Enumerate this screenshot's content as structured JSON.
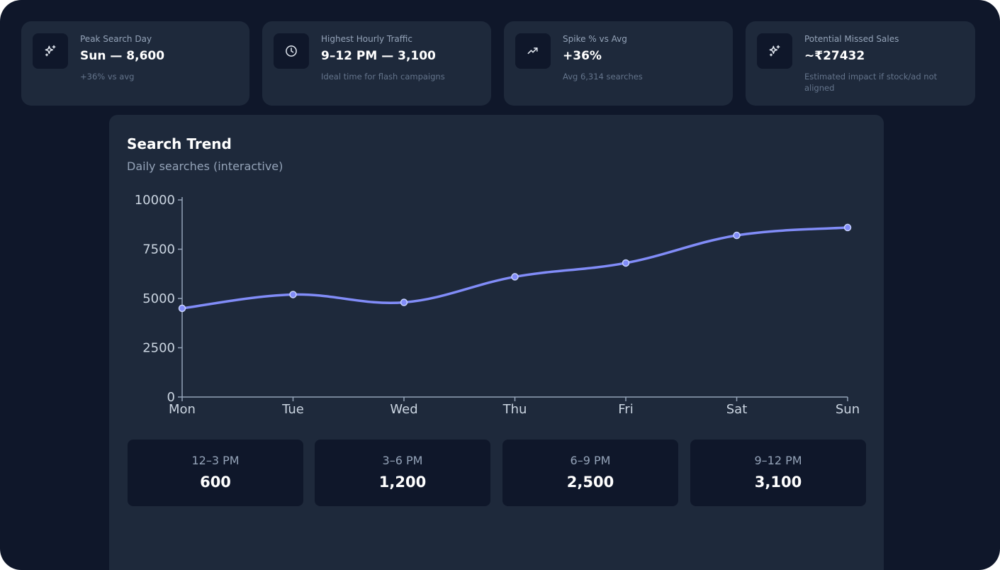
{
  "kpis": [
    {
      "icon": "sparkles-icon",
      "label": "Peak Search Day",
      "value": "Sun — 8,600",
      "sub": "+36% vs avg"
    },
    {
      "icon": "clock-icon",
      "label": "Highest Hourly Traffic",
      "value": "9–12 PM — 3,100",
      "sub": "Ideal time for flash campaigns"
    },
    {
      "icon": "trending-up-icon",
      "label": "Spike % vs Avg",
      "value": "+36%",
      "sub": "Avg 6,314 searches"
    },
    {
      "icon": "sparkles-icon",
      "label": "Potential Missed Sales",
      "value": "~₹27432",
      "sub": "Estimated impact if stock/ad not aligned"
    }
  ],
  "trend": {
    "title": "Search Trend",
    "subtitle": "Daily searches (interactive)"
  },
  "chart_data": {
    "type": "line",
    "title": "Search Trend",
    "categories": [
      "Mon",
      "Tue",
      "Wed",
      "Thu",
      "Fri",
      "Sat",
      "Sun"
    ],
    "values": [
      4500,
      5200,
      4800,
      6100,
      6800,
      8200,
      8600
    ],
    "yticks": [
      0,
      2500,
      5000,
      7500,
      10000
    ],
    "ylim": [
      0,
      10000
    ],
    "color": "#818cf8"
  },
  "hourly": [
    {
      "label": "12–3 PM",
      "value": "600"
    },
    {
      "label": "3–6 PM",
      "value": "1,200"
    },
    {
      "label": "6–9 PM",
      "value": "2,500"
    },
    {
      "label": "9–12 PM",
      "value": "3,100"
    }
  ],
  "colors": {
    "background": "#0f172a",
    "card": "#1e293b",
    "accent": "#818cf8"
  }
}
